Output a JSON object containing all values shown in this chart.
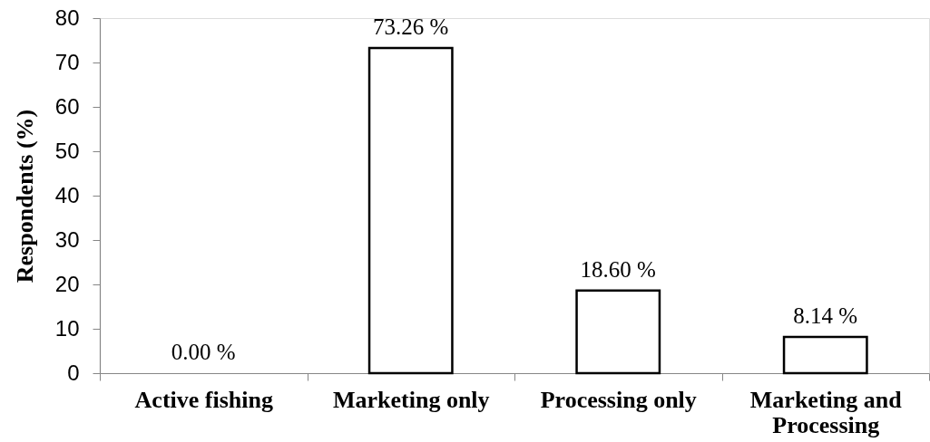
{
  "chart_data": {
    "type": "bar",
    "categories": [
      "Active fishing",
      "Marketing only",
      "Processing only",
      "Marketing and Processing"
    ],
    "values": [
      0,
      73.26,
      18.6,
      8.14
    ],
    "value_labels": [
      "0.00 %",
      "73.26 %",
      "18.60 %",
      "8.14 %"
    ],
    "color": "#ffffff",
    "ylabel": "Respondents (%)",
    "ylim": [
      0,
      80
    ],
    "yticks": [
      0,
      10,
      20,
      30,
      40,
      50,
      60,
      70,
      80
    ],
    "grid": false
  }
}
